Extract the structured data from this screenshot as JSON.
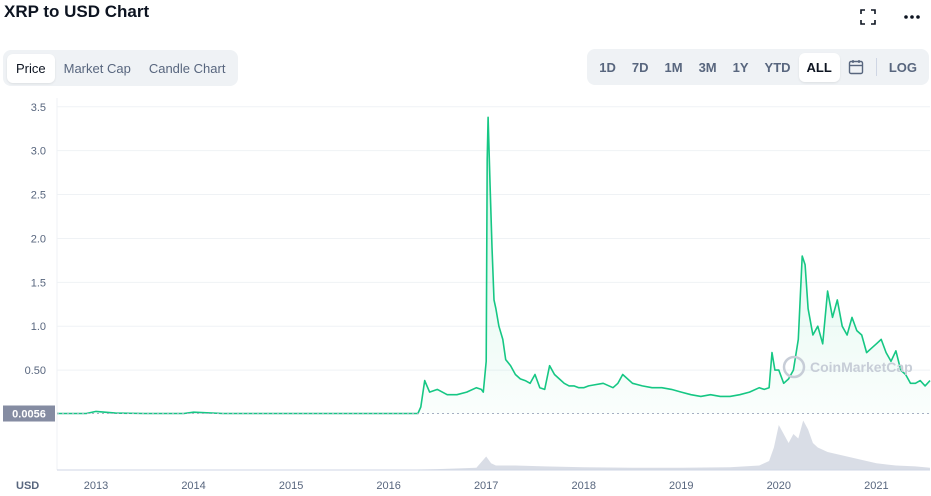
{
  "header": {
    "title": "XRP to USD Chart"
  },
  "tabs": [
    {
      "label": "Price",
      "active": true
    },
    {
      "label": "Market Cap",
      "active": false
    },
    {
      "label": "Candle Chart",
      "active": false
    }
  ],
  "ranges": [
    "1D",
    "7D",
    "1M",
    "3M",
    "1Y",
    "YTD",
    "ALL"
  ],
  "active_range": "ALL",
  "log_label": "LOG",
  "icons": {
    "fullscreen": "fullscreen-icon",
    "more": "more-icon",
    "calendar": "calendar-icon"
  },
  "colors": {
    "line": "#16c784",
    "area": "#16c784",
    "volume": "#c9cfdb",
    "price_badge": "#858ca2"
  },
  "watermark": "CoinMarketCap",
  "chart_data": {
    "type": "area",
    "y_ticks": [
      "0.50",
      "1.0",
      "1.5",
      "2.0",
      "2.5",
      "3.0",
      "3.5"
    ],
    "y_tick_values": [
      0.5,
      1.0,
      1.5,
      2.0,
      2.5,
      3.0,
      3.5
    ],
    "ylim": [
      0,
      3.6
    ],
    "x_ticks": [
      "2013",
      "2014",
      "2015",
      "2016",
      "2017",
      "2018",
      "2019",
      "2020",
      "2021"
    ],
    "current_price_label": "0.0056",
    "current_price": 0.0056,
    "volume_label": "USD",
    "series": [
      {
        "x": [
          2012.6,
          2012.9,
          2013.0,
          2013.2,
          2013.5,
          2013.9,
          2014.0,
          2014.3,
          2014.8,
          2015.2,
          2015.7,
          2016.0,
          2016.2,
          2016.3,
          2016.33,
          2016.37,
          2016.42,
          2016.5,
          2016.6,
          2016.7,
          2016.8,
          2016.9,
          2016.95,
          2016.97,
          2017.0,
          2017.01,
          2017.02,
          2017.04,
          2017.06,
          2017.08,
          2017.1,
          2017.13,
          2017.17,
          2017.2,
          2017.25,
          2017.3,
          2017.35,
          2017.4,
          2017.45,
          2017.5,
          2017.55,
          2017.6,
          2017.65,
          2017.7,
          2017.75,
          2017.8,
          2017.85,
          2017.9,
          2017.95,
          2018.0,
          2018.05,
          2018.1,
          2018.2,
          2018.3,
          2018.35,
          2018.4,
          2018.5,
          2018.6,
          2018.7,
          2018.8,
          2018.9,
          2019.0,
          2019.1,
          2019.2,
          2019.3,
          2019.4,
          2019.5,
          2019.6,
          2019.7,
          2019.8,
          2019.85,
          2019.9,
          2019.93,
          2019.96,
          2020.0,
          2020.05,
          2020.1,
          2020.15,
          2020.2,
          2020.24,
          2020.27,
          2020.3,
          2020.35,
          2020.4,
          2020.45,
          2020.5,
          2020.55,
          2020.6,
          2020.65,
          2020.7,
          2020.75,
          2020.8,
          2020.85,
          2020.9,
          2020.95,
          2021.0,
          2021.05,
          2021.1,
          2021.15,
          2021.2,
          2021.25,
          2021.3,
          2021.35,
          2021.4,
          2021.45,
          2021.5,
          2021.55
        ],
        "y": [
          0.006,
          0.006,
          0.03,
          0.01,
          0.006,
          0.006,
          0.02,
          0.006,
          0.006,
          0.006,
          0.006,
          0.006,
          0.006,
          0.006,
          0.08,
          0.38,
          0.25,
          0.28,
          0.22,
          0.22,
          0.25,
          0.3,
          0.28,
          0.25,
          0.6,
          2.9,
          3.38,
          2.6,
          1.9,
          1.3,
          1.2,
          1.0,
          0.85,
          0.62,
          0.55,
          0.45,
          0.4,
          0.38,
          0.35,
          0.45,
          0.3,
          0.28,
          0.55,
          0.45,
          0.4,
          0.35,
          0.32,
          0.32,
          0.3,
          0.3,
          0.32,
          0.33,
          0.35,
          0.3,
          0.35,
          0.45,
          0.35,
          0.32,
          0.3,
          0.3,
          0.28,
          0.25,
          0.22,
          0.2,
          0.22,
          0.2,
          0.2,
          0.22,
          0.25,
          0.3,
          0.28,
          0.3,
          0.7,
          0.5,
          0.5,
          0.35,
          0.4,
          0.5,
          0.85,
          1.8,
          1.7,
          1.2,
          0.9,
          1.0,
          0.8,
          1.4,
          1.1,
          1.3,
          1.0,
          0.9,
          1.1,
          0.95,
          0.9,
          0.7,
          0.75,
          0.8,
          0.85,
          0.7,
          0.6,
          0.72,
          0.5,
          0.45,
          0.35,
          0.35,
          0.38,
          0.32,
          0.38
        ]
      }
    ],
    "volume": {
      "x": [
        2016.0,
        2016.5,
        2016.9,
        2017.0,
        2017.05,
        2017.1,
        2017.3,
        2017.6,
        2018.0,
        2018.5,
        2019.0,
        2019.5,
        2019.8,
        2019.9,
        2019.95,
        2020.0,
        2020.1,
        2020.15,
        2020.2,
        2020.25,
        2020.3,
        2020.35,
        2020.4,
        2020.5,
        2020.6,
        2020.7,
        2020.8,
        2020.9,
        2021.0,
        2021.2,
        2021.4,
        2021.55
      ],
      "y": [
        0.0,
        0.02,
        0.05,
        0.3,
        0.15,
        0.1,
        0.1,
        0.08,
        0.06,
        0.05,
        0.05,
        0.06,
        0.1,
        0.2,
        0.5,
        1.0,
        0.6,
        0.8,
        0.7,
        1.1,
        0.9,
        0.6,
        0.5,
        0.4,
        0.35,
        0.3,
        0.25,
        0.2,
        0.15,
        0.1,
        0.08,
        0.05
      ]
    }
  }
}
